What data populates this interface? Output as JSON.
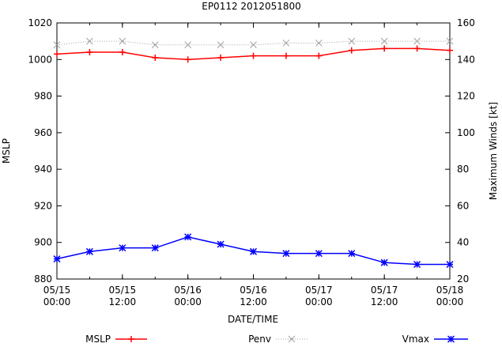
{
  "chart_data": {
    "type": "line",
    "title": "EP0112 2012051800",
    "xlabel": "DATE/TIME",
    "ylabel": "MSLP",
    "y2label": "Maximum Winds [kt]",
    "ylim": [
      880,
      1020
    ],
    "y2lim": [
      20,
      160
    ],
    "yticks": [
      880,
      900,
      920,
      940,
      960,
      980,
      1000,
      1020
    ],
    "y2ticks": [
      20,
      40,
      60,
      80,
      100,
      120,
      140,
      160
    ],
    "xlim": [
      "05/15 00:00",
      "05/18 00:00"
    ],
    "xticks": [
      {
        "date": "05/15",
        "time": "00:00"
      },
      {
        "date": "05/15",
        "time": "12:00"
      },
      {
        "date": "05/16",
        "time": "00:00"
      },
      {
        "date": "05/16",
        "time": "12:00"
      },
      {
        "date": "05/17",
        "time": "00:00"
      },
      {
        "date": "05/17",
        "time": "12:00"
      },
      {
        "date": "05/18",
        "time": "00:00"
      }
    ],
    "x": [
      "05/15 00:00",
      "05/15 06:00",
      "05/15 12:00",
      "05/15 18:00",
      "05/16 00:00",
      "05/16 06:00",
      "05/16 12:00",
      "05/16 18:00",
      "05/17 00:00",
      "05/17 06:00",
      "05/17 12:00",
      "05/17 18:00",
      "05/18 00:00"
    ],
    "series": [
      {
        "name": "MSLP",
        "axis": "left",
        "color": "#ff0000",
        "marker": "plus",
        "style": "solid",
        "values": [
          1003,
          1004,
          1004,
          1001,
          1000,
          1001,
          1002,
          1002,
          1002,
          1005,
          1006,
          1006,
          1005
        ]
      },
      {
        "name": "Penv",
        "axis": "left",
        "color": "#a0a0a0",
        "marker": "cross",
        "style": "dotted",
        "values": [
          1008,
          1010,
          1010,
          1008,
          1008,
          1008,
          1008,
          1009,
          1009,
          1010,
          1010,
          1010,
          1010
        ]
      },
      {
        "name": "Vmax",
        "axis": "right",
        "color": "#0000ff",
        "marker": "star",
        "style": "solid",
        "values": [
          31,
          35,
          37,
          37,
          43,
          39,
          35,
          34,
          34,
          34,
          29,
          28,
          28
        ]
      }
    ],
    "legend": "bottom",
    "grid": false
  }
}
